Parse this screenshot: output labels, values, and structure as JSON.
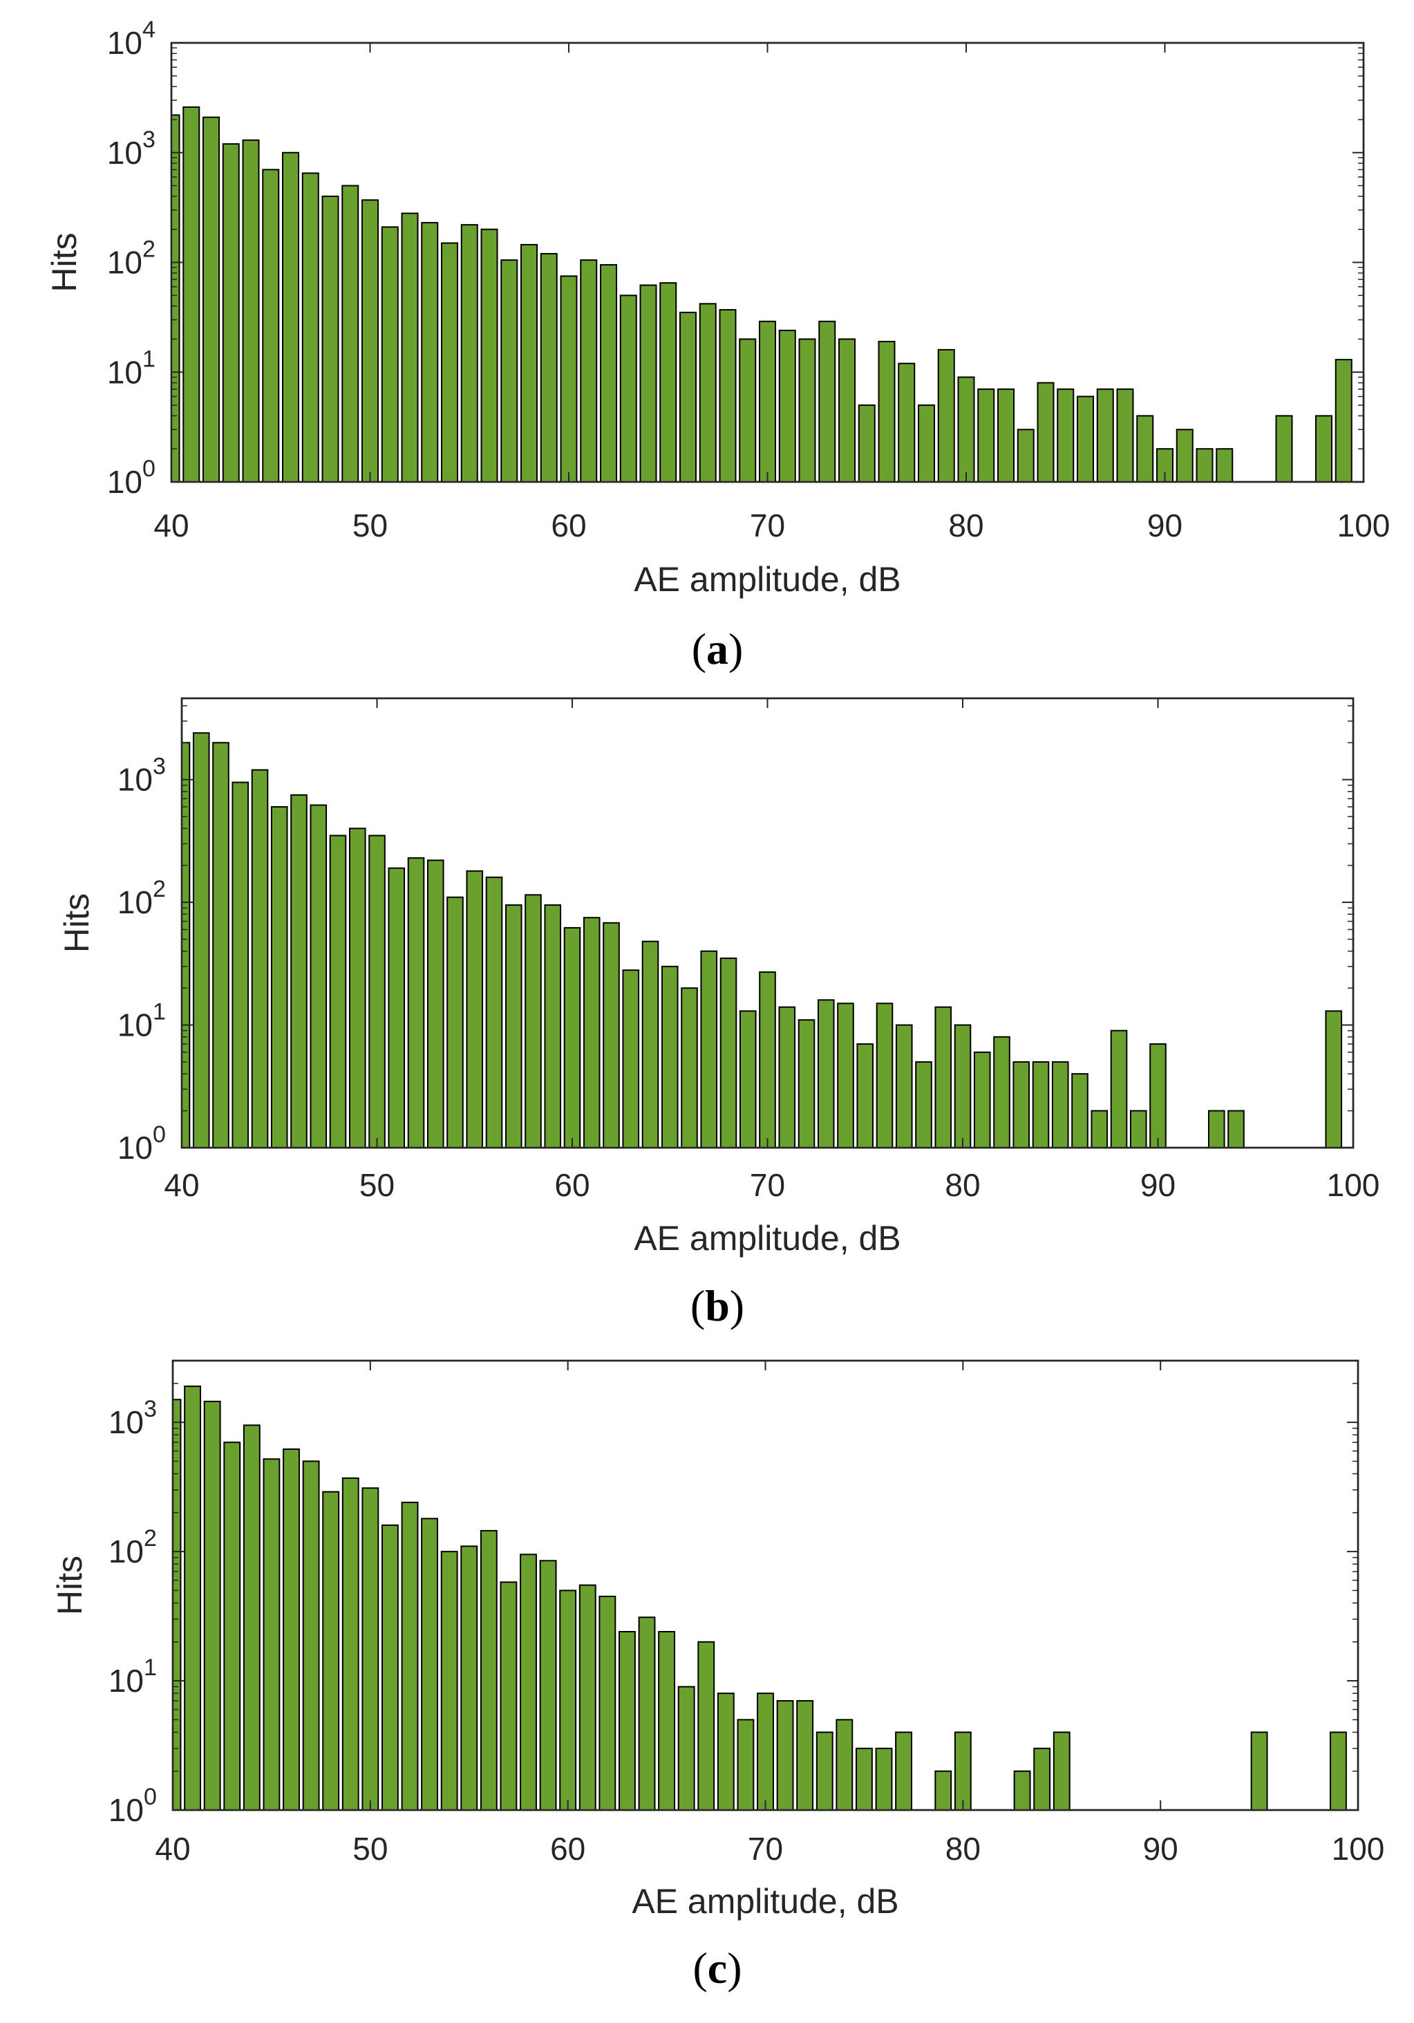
{
  "bar_color": "#6aa12e",
  "edge_color": "#000000",
  "chart_data": [
    {
      "type": "bar",
      "panel": "a",
      "caption_letter": "a",
      "xlabel": "AE amplitude, dB",
      "ylabel": "Hits",
      "yscale": "log",
      "xlim": [
        40,
        100
      ],
      "ylim": [
        1,
        10000
      ],
      "xticks": [
        "40",
        "50",
        "60",
        "70",
        "80",
        "90",
        "100"
      ],
      "yticks": [
        {
          "base": "10",
          "exp": "0"
        },
        {
          "base": "10",
          "exp": "1"
        },
        {
          "base": "10",
          "exp": "2"
        },
        {
          "base": "10",
          "exp": "3"
        },
        {
          "base": "10",
          "exp": "4"
        }
      ],
      "x": [
        40,
        41,
        42,
        43,
        44,
        45,
        46,
        47,
        48,
        49,
        50,
        51,
        52,
        53,
        54,
        55,
        56,
        57,
        58,
        59,
        60,
        61,
        62,
        63,
        64,
        65,
        66,
        67,
        68,
        69,
        70,
        71,
        72,
        73,
        74,
        75,
        76,
        77,
        78,
        79,
        80,
        81,
        82,
        83,
        84,
        85,
        86,
        87,
        88,
        89,
        90,
        91,
        92,
        93,
        94,
        95,
        96,
        97,
        98,
        99,
        100
      ],
      "values": [
        2200,
        2600,
        2100,
        1200,
        1300,
        700,
        1000,
        650,
        400,
        500,
        370,
        210,
        280,
        230,
        150,
        220,
        200,
        105,
        145,
        120,
        75,
        105,
        95,
        50,
        62,
        65,
        35,
        42,
        37,
        20,
        29,
        24,
        20,
        29,
        20,
        5,
        19,
        12,
        5,
        16,
        9,
        7,
        7,
        3,
        8,
        7,
        6,
        7,
        7,
        4,
        2,
        3,
        2,
        2,
        1,
        1,
        4,
        1,
        4,
        13,
        0
      ]
    },
    {
      "type": "bar",
      "panel": "b",
      "caption_letter": "b",
      "xlabel": "AE amplitude, dB",
      "ylabel": "Hits",
      "yscale": "log",
      "xlim": [
        40,
        100
      ],
      "ylim": [
        1,
        4600
      ],
      "xticks": [
        "40",
        "50",
        "60",
        "70",
        "80",
        "90",
        "100"
      ],
      "yticks": [
        {
          "base": "10",
          "exp": "0"
        },
        {
          "base": "10",
          "exp": "1"
        },
        {
          "base": "10",
          "exp": "2"
        },
        {
          "base": "10",
          "exp": "3"
        }
      ],
      "x": [
        40,
        41,
        42,
        43,
        44,
        45,
        46,
        47,
        48,
        49,
        50,
        51,
        52,
        53,
        54,
        55,
        56,
        57,
        58,
        59,
        60,
        61,
        62,
        63,
        64,
        65,
        66,
        67,
        68,
        69,
        70,
        71,
        72,
        73,
        74,
        75,
        76,
        77,
        78,
        79,
        80,
        81,
        82,
        83,
        84,
        85,
        86,
        87,
        88,
        89,
        90,
        91,
        92,
        93,
        94,
        95,
        96,
        97,
        98,
        99,
        100
      ],
      "values": [
        2000,
        2400,
        2000,
        950,
        1200,
        600,
        750,
        620,
        350,
        400,
        350,
        190,
        230,
        220,
        110,
        180,
        160,
        95,
        115,
        95,
        62,
        75,
        68,
        28,
        48,
        30,
        20,
        40,
        35,
        13,
        27,
        14,
        11,
        16,
        15,
        7,
        15,
        10,
        5,
        14,
        10,
        6,
        8,
        5,
        5,
        5,
        4,
        2,
        9,
        2,
        7,
        1,
        1,
        2,
        2,
        1,
        1,
        1,
        1,
        13,
        0
      ]
    },
    {
      "type": "bar",
      "panel": "c",
      "caption_letter": "c",
      "xlabel": "AE amplitude, dB",
      "ylabel": "Hits",
      "yscale": "log",
      "xlim": [
        40,
        100
      ],
      "ylim": [
        1,
        3000
      ],
      "xticks": [
        "40",
        "50",
        "60",
        "70",
        "80",
        "90",
        "100"
      ],
      "yticks": [
        {
          "base": "10",
          "exp": "0"
        },
        {
          "base": "10",
          "exp": "1"
        },
        {
          "base": "10",
          "exp": "2"
        },
        {
          "base": "10",
          "exp": "3"
        }
      ],
      "x": [
        40,
        41,
        42,
        43,
        44,
        45,
        46,
        47,
        48,
        49,
        50,
        51,
        52,
        53,
        54,
        55,
        56,
        57,
        58,
        59,
        60,
        61,
        62,
        63,
        64,
        65,
        66,
        67,
        68,
        69,
        70,
        71,
        72,
        73,
        74,
        75,
        76,
        77,
        78,
        79,
        80,
        81,
        82,
        83,
        84,
        85,
        86,
        87,
        88,
        89,
        90,
        91,
        92,
        93,
        94,
        95,
        96,
        97,
        98,
        99,
        100
      ],
      "values": [
        1500,
        1900,
        1450,
        700,
        950,
        520,
        620,
        500,
        290,
        370,
        310,
        160,
        240,
        180,
        100,
        110,
        145,
        58,
        95,
        85,
        50,
        55,
        45,
        24,
        31,
        24,
        9,
        20,
        8,
        5,
        8,
        7,
        7,
        4,
        5,
        3,
        3,
        4,
        1,
        2,
        4,
        1,
        1,
        2,
        3,
        4,
        1,
        1,
        1,
        1,
        1,
        1,
        1,
        1,
        1,
        4,
        1,
        1,
        1,
        4,
        0
      ]
    }
  ]
}
